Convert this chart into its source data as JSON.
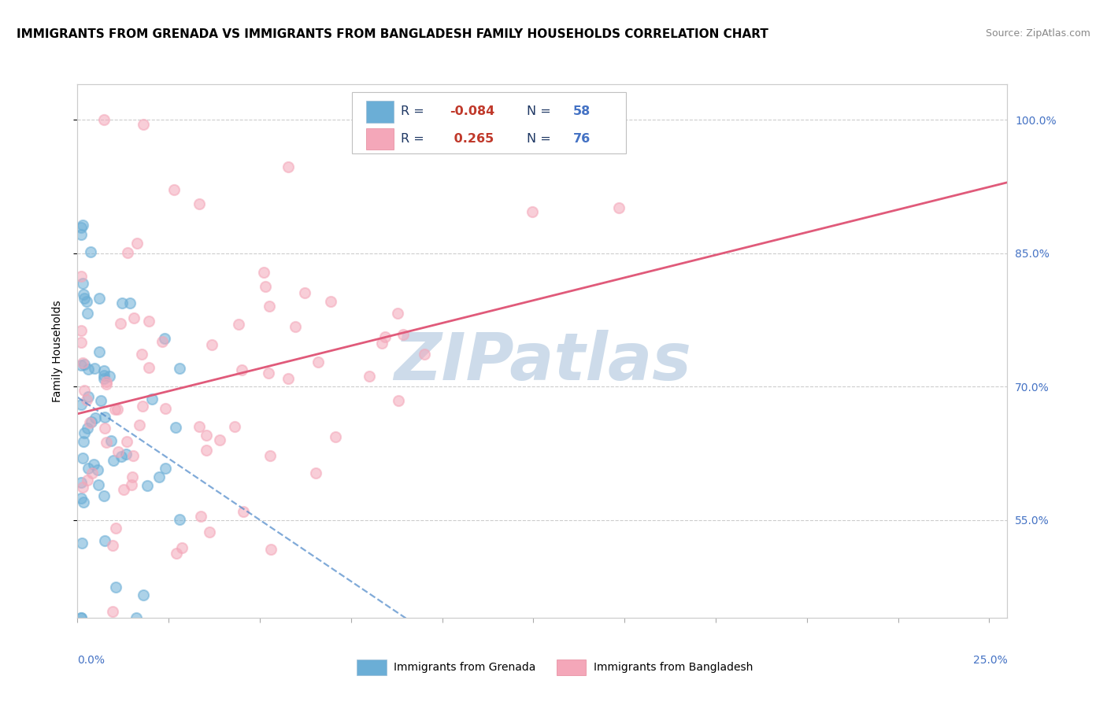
{
  "title": "IMMIGRANTS FROM GRENADA VS IMMIGRANTS FROM BANGLADESH FAMILY HOUSEHOLDS CORRELATION CHART",
  "source": "Source: ZipAtlas.com",
  "ylabel": "Family Households",
  "ytick_labels": [
    "55.0%",
    "70.0%",
    "85.0%",
    "100.0%"
  ],
  "ytick_values": [
    0.55,
    0.7,
    0.85,
    1.0
  ],
  "ymin": 0.44,
  "ymax": 1.04,
  "xmin": 0.0,
  "xmax": 0.255,
  "watermark": "ZIPatlas",
  "series": [
    {
      "name": "Immigrants from Grenada",
      "R": -0.084,
      "N": 58,
      "marker_color": "#6baed6",
      "trend_color": "#4a86c8",
      "trend_style": "--",
      "trend_alpha": 0.7
    },
    {
      "name": "Immigrants from Bangladesh",
      "R": 0.265,
      "N": 76,
      "marker_color": "#f4a7b9",
      "trend_color": "#e05a7a",
      "trend_style": "-",
      "trend_alpha": 1.0
    }
  ],
  "title_fontsize": 11,
  "axis_label_fontsize": 10,
  "tick_fontsize": 10,
  "source_fontsize": 9,
  "watermark_color": "#c8d8e8",
  "watermark_fontsize": 60,
  "grid_color": "#cccccc",
  "grid_style": "--",
  "background_color": "white",
  "right_axis_color": "#4472c4",
  "legend_border_color": "#c0c0c0"
}
